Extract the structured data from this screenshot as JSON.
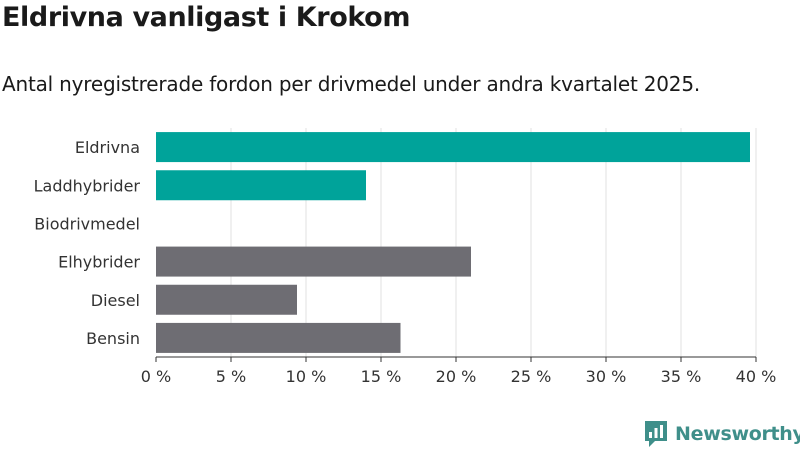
{
  "title": "Eldrivna vanligast i Krokom",
  "subtitle": "Antal nyregistrerade fordon per drivmedel under andra kvartalet 2025.",
  "brand": {
    "name": "Newsworthy",
    "icon": "newsworthy-logo-icon"
  },
  "colors": {
    "highlight": "#00a39a",
    "other": "#6e6d73",
    "grid": "#e0e0e0",
    "axis": "#333333",
    "brand": "#3f8f8a"
  },
  "chart_data": {
    "type": "bar",
    "orientation": "horizontal",
    "categories": [
      "Eldrivna",
      "Laddhybrider",
      "Biodrivmedel",
      "Elhybrider",
      "Diesel",
      "Bensin"
    ],
    "values": [
      39.6,
      14.0,
      0,
      21.0,
      9.4,
      16.3
    ],
    "highlighted": [
      true,
      true,
      true,
      false,
      false,
      false
    ],
    "xlim": [
      0,
      40
    ],
    "xticks": [
      0,
      5,
      10,
      15,
      20,
      25,
      30,
      35,
      40
    ],
    "tick_labels": [
      "0 %",
      "5 %",
      "10 %",
      "15 %",
      "20 %",
      "25 %",
      "30 %",
      "35 %",
      "40 %"
    ],
    "grid": true,
    "legend": "none"
  }
}
